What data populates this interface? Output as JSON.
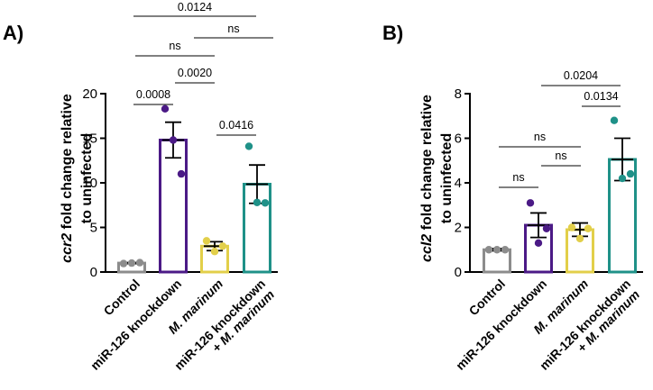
{
  "chart_data": [
    {
      "panel_label": "A)",
      "type": "bar",
      "ylabel_italic": "ccr2",
      "ylabel_rest_1": " fold change relative",
      "ylabel_line2": "to uninfected",
      "ylim": [
        0,
        20
      ],
      "yticks": [
        "0",
        "5",
        "10",
        "15",
        "20"
      ],
      "categories": [
        {
          "lines": [
            {
              "text": "Control",
              "italic": false
            }
          ]
        },
        {
          "lines": [
            {
              "text": "miR-126 knockdown",
              "italic": false
            }
          ]
        },
        {
          "lines": [
            {
              "text": "M. marinum",
              "italic": true
            }
          ]
        },
        {
          "lines": [
            {
              "text": "miR-126 knockdown",
              "italic": false
            },
            {
              "text": "+ M. marinum",
              "italic": true
            }
          ]
        }
      ],
      "colors": [
        "#8c8c8c",
        "#4b1a86",
        "#e2cf4a",
        "#1f9188"
      ],
      "means": [
        1.0,
        14.8,
        2.9,
        9.85
      ],
      "sem": [
        0.05,
        2.0,
        0.5,
        2.15
      ],
      "points": [
        [
          0.95,
          1.0,
          1.05
        ],
        [
          18.3,
          14.8,
          11.0
        ],
        [
          3.5,
          2.3,
          2.9
        ],
        [
          14.1,
          7.8,
          7.75
        ]
      ],
      "comparisons": [
        {
          "a": 0,
          "b": 1,
          "label": "0.0008"
        },
        {
          "a": 1,
          "b": 2,
          "label": "0.0020"
        },
        {
          "a": 2,
          "b": 3,
          "label": "0.0416"
        },
        {
          "a": 0,
          "b": 2,
          "label": "ns"
        },
        {
          "a": 1,
          "b": 3,
          "label": "ns"
        },
        {
          "a": 0,
          "b": 3,
          "label": "0.0124"
        }
      ]
    },
    {
      "panel_label": "B)",
      "type": "bar",
      "ylabel_italic": "ccl2",
      "ylabel_rest_1": " fold change relative",
      "ylabel_line2": "to uninfected",
      "ylim": [
        0,
        8
      ],
      "yticks": [
        "0",
        "2",
        "4",
        "6",
        "8"
      ],
      "categories": [
        {
          "lines": [
            {
              "text": "Control",
              "italic": false
            }
          ]
        },
        {
          "lines": [
            {
              "text": "miR-126 knockdown",
              "italic": false
            }
          ]
        },
        {
          "lines": [
            {
              "text": "M. marinum",
              "italic": true
            }
          ]
        },
        {
          "lines": [
            {
              "text": "miR-126 knockdown",
              "italic": false
            },
            {
              "text": "+ M. marinum",
              "italic": true
            }
          ]
        }
      ],
      "colors": [
        "#8c8c8c",
        "#4b1a86",
        "#e2cf4a",
        "#1f9188"
      ],
      "means": [
        1.0,
        2.1,
        1.9,
        5.05
      ],
      "sem": [
        0.05,
        0.55,
        0.3,
        0.95
      ],
      "points": [
        [
          1.0,
          1.0,
          1.0
        ],
        [
          3.1,
          1.3,
          1.95
        ],
        [
          2.0,
          1.5,
          1.95
        ],
        [
          6.8,
          4.2,
          4.4
        ]
      ],
      "comparisons": [
        {
          "a": 0,
          "b": 1,
          "label": "ns"
        },
        {
          "a": 1,
          "b": 2,
          "label": "ns"
        },
        {
          "a": 0,
          "b": 2,
          "label": "ns"
        },
        {
          "a": 2,
          "b": 3,
          "label": "0.0134"
        },
        {
          "a": 1,
          "b": 3,
          "label": "0.0204"
        }
      ]
    }
  ]
}
